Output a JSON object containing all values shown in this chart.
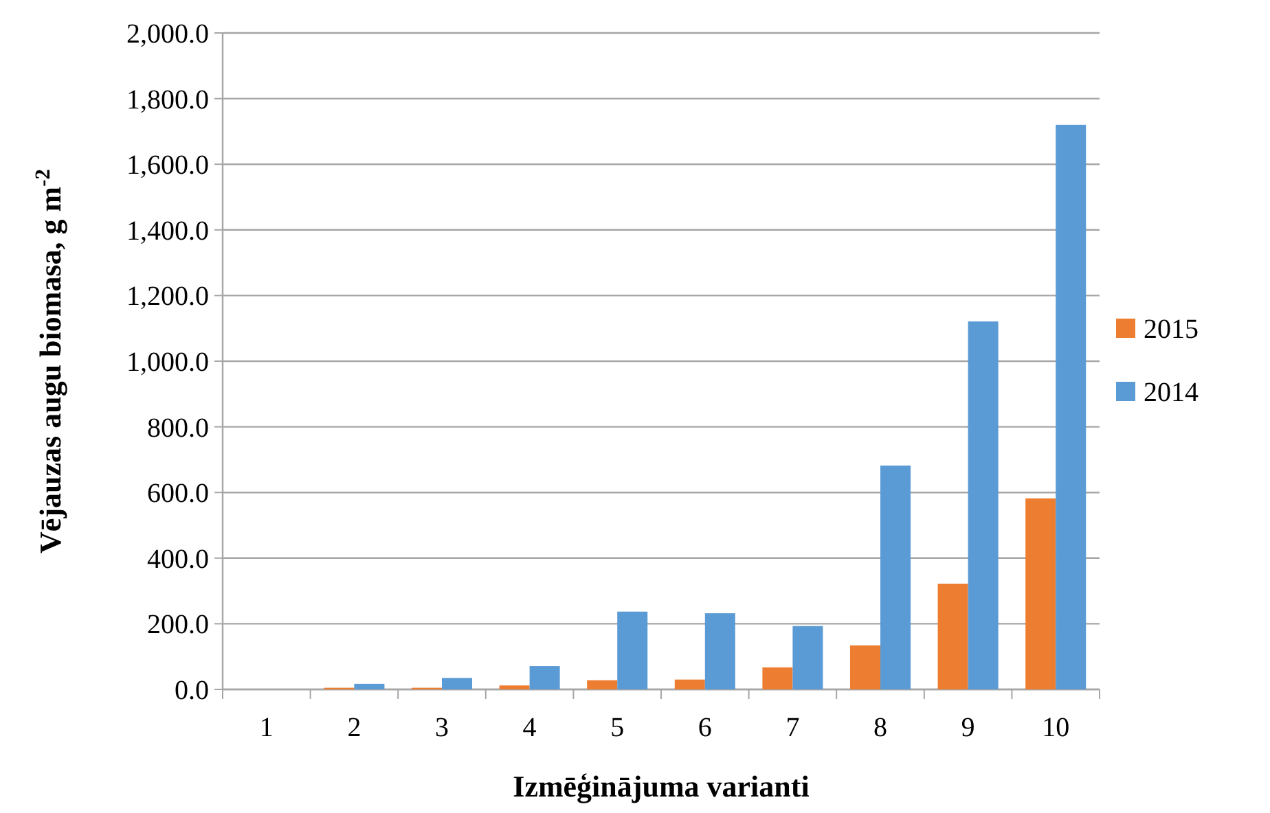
{
  "chart_data": {
    "type": "bar",
    "xlabel": "Izmēģinājuma varianti",
    "ylabel": "Vējauzas augu biomasa, g m$^{-2}$",
    "categories": [
      "1",
      "2",
      "3",
      "4",
      "5",
      "6",
      "7",
      "8",
      "9",
      "10"
    ],
    "series": [
      {
        "name": "2015",
        "color": "#ed7d31",
        "values": [
          0,
          5,
          5,
          12,
          28,
          30,
          67,
          134,
          322,
          582
        ]
      },
      {
        "name": "2014",
        "color": "#5b9bd5",
        "values": [
          0,
          17,
          35,
          71,
          237,
          232,
          193,
          682,
          1121,
          1720
        ]
      }
    ],
    "ylim": [
      0,
      2000
    ],
    "yticks": [
      {
        "value": 0,
        "label": "0.0"
      },
      {
        "value": 200,
        "label": "200.0"
      },
      {
        "value": 400,
        "label": "400.0"
      },
      {
        "value": 600,
        "label": "600.0"
      },
      {
        "value": 800,
        "label": "800.0"
      },
      {
        "value": 1000,
        "label": "1,000.0"
      },
      {
        "value": 1200,
        "label": "1,200.0"
      },
      {
        "value": 1400,
        "label": "1,400.0"
      },
      {
        "value": 1600,
        "label": "1,600.0"
      },
      {
        "value": 1800,
        "label": "1,800.0"
      },
      {
        "value": 2000,
        "label": "2,000.0"
      }
    ],
    "grid": "y",
    "legend": "right"
  }
}
